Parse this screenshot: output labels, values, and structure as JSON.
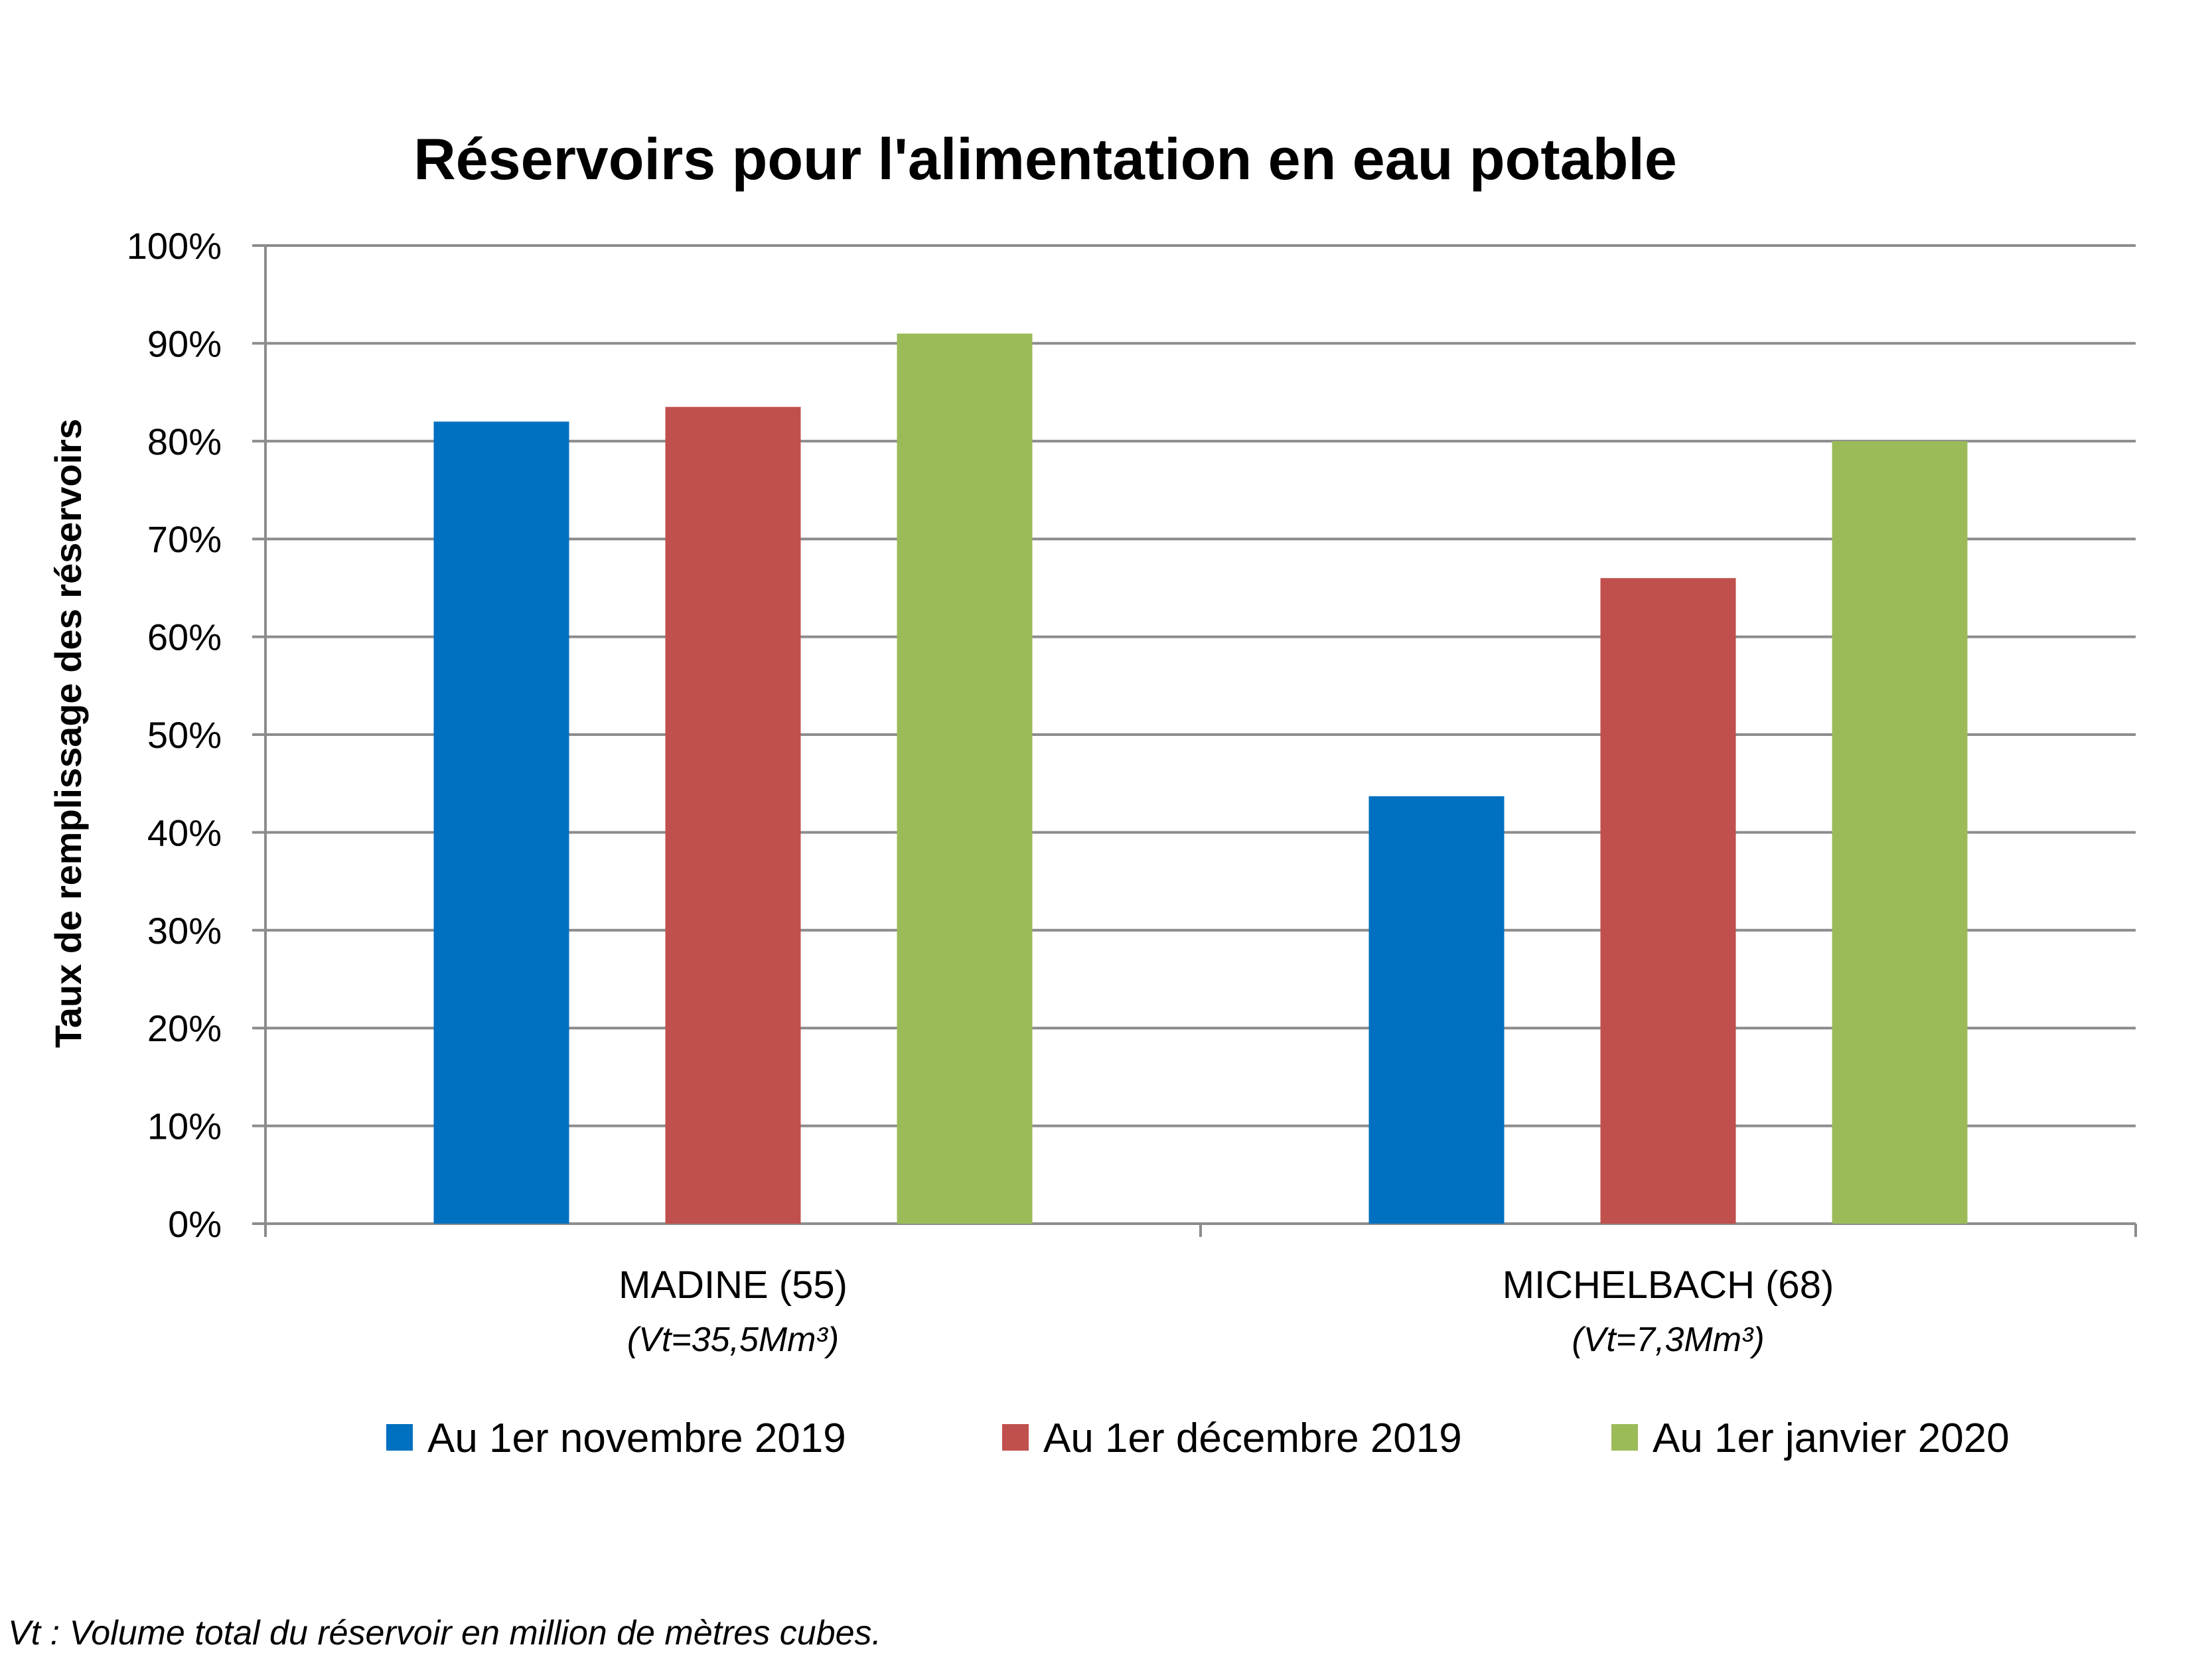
{
  "chart_data": {
    "type": "bar",
    "title": "Réservoirs pour l'alimentation en eau potable",
    "ylabel": "Taux de remplissage des réservoirs",
    "xlabel": "",
    "ylim": [
      0,
      100
    ],
    "yticks": [
      "0%",
      "10%",
      "20%",
      "30%",
      "40%",
      "50%",
      "60%",
      "70%",
      "80%",
      "90%",
      "100%"
    ],
    "grid": true,
    "legend_position": "bottom",
    "categories": [
      "MADINE (55)",
      "MICHELBACH (68)"
    ],
    "category_subtitles": [
      "(Vt=35,5Mm³)",
      "(Vt=7,3Mm³)"
    ],
    "series": [
      {
        "name": "Au 1er novembre 2019",
        "color": "#0070C0",
        "values": [
          82,
          43.7
        ]
      },
      {
        "name": "Au 1er décembre 2019",
        "color": "#C0504D",
        "values": [
          83.5,
          66
        ]
      },
      {
        "name": "Au 1er janvier 2020",
        "color": "#9BBB59",
        "values": [
          91,
          80
        ]
      }
    ]
  },
  "footnote": "Vt : Volume total du réservoir en million de mètres cubes."
}
